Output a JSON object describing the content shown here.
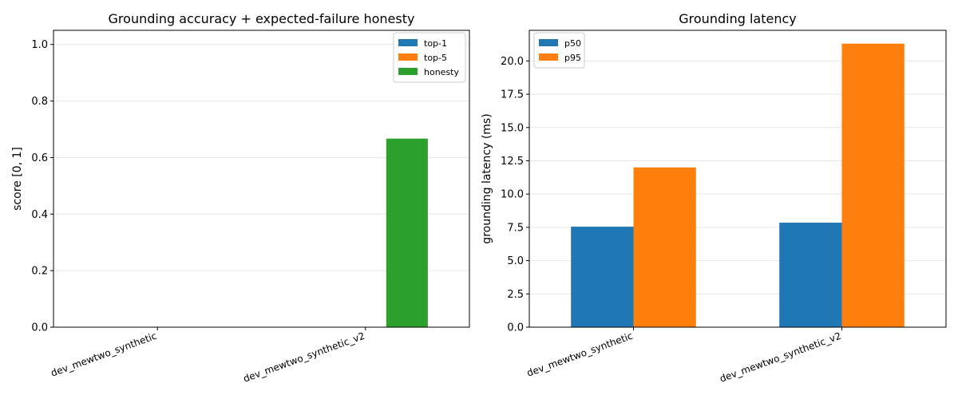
{
  "chart_data": [
    {
      "type": "bar",
      "title": "Grounding accuracy + expected-failure honesty",
      "xlabel": "",
      "ylabel": "score [0, 1]",
      "categories": [
        "dev_mewtwo_synthetic",
        "dev_mewtwo_synthetic_v2"
      ],
      "ylim": [
        0,
        1.05
      ],
      "yticks": [
        "0.0",
        "0.2",
        "0.4",
        "0.6",
        "0.8",
        "1.0"
      ],
      "ytick_values": [
        0,
        0.2,
        0.4,
        0.6,
        0.8,
        1.0
      ],
      "grid": "y",
      "legend_position": "top-right",
      "series": [
        {
          "name": "top-1",
          "color": "#1f77b4",
          "values": [
            0,
            0
          ]
        },
        {
          "name": "top-5",
          "color": "#ff7f0e",
          "values": [
            0,
            0
          ]
        },
        {
          "name": "honesty",
          "color": "#2ca02c",
          "values": [
            0,
            0.667
          ]
        }
      ]
    },
    {
      "type": "bar",
      "title": "Grounding latency",
      "xlabel": "",
      "ylabel": "grounding latency (ms)",
      "categories": [
        "dev_mewtwo_synthetic",
        "dev_mewtwo_synthetic_v2"
      ],
      "ylim": [
        0,
        22.3
      ],
      "yticks": [
        "0.0",
        "2.5",
        "5.0",
        "7.5",
        "10.0",
        "12.5",
        "15.0",
        "17.5",
        "20.0"
      ],
      "ytick_values": [
        0,
        2.5,
        5,
        7.5,
        10,
        12.5,
        15,
        17.5,
        20
      ],
      "grid": "y",
      "legend_position": "top-left",
      "series": [
        {
          "name": "p50",
          "color": "#1f77b4",
          "values": [
            7.55,
            7.85
          ]
        },
        {
          "name": "p95",
          "color": "#ff7f0e",
          "values": [
            12.0,
            21.3
          ]
        }
      ]
    }
  ]
}
